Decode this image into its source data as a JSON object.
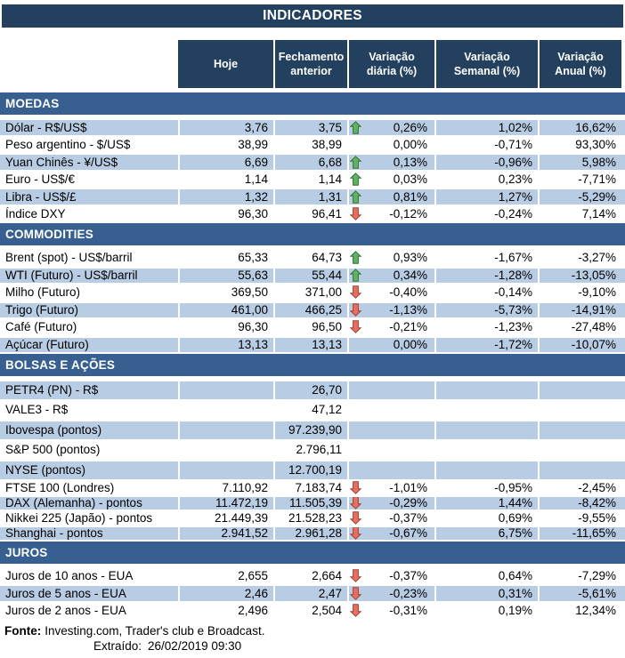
{
  "title": "INDICADORES",
  "columns": [
    "Hoje",
    "Fechamento anterior",
    "Variação diária (%)",
    "Variação Semanal (%)",
    "Variação Anual (%)"
  ],
  "colors": {
    "title_header_bg": "#24405f",
    "section_bar_bg": "#376091",
    "row_shade": "#b8cce4",
    "arrow_up_fill": "#5fb25f",
    "arrow_up_border": "#35703a",
    "arrow_down_fill": "#e4705f",
    "arrow_down_border": "#a43e35",
    "header_text": "#ffffff",
    "body_text": "#000000"
  },
  "sections": [
    {
      "id": "moedas",
      "name": "MOEDAS",
      "rows": [
        {
          "label": "Dólar - R$/US$",
          "hoje": "3,76",
          "fech": "3,75",
          "arrow": "up",
          "vd": "0,26%",
          "vs": "1,02%",
          "va": "16,62%",
          "shaded": true,
          "size": "normal"
        },
        {
          "label": "Peso argentino - $/US$",
          "hoje": "38,99",
          "fech": "38,99",
          "arrow": "",
          "vd": "0,00%",
          "vs": "-0,71%",
          "va": "93,30%",
          "shaded": false,
          "size": "normal"
        },
        {
          "label": "Yuan Chinês - ¥/US$",
          "hoje": "6,69",
          "fech": "6,68",
          "arrow": "up",
          "vd": "0,13%",
          "vs": "-0,96%",
          "va": "5,98%",
          "shaded": true,
          "size": "normal"
        },
        {
          "label": "Euro - US$/€",
          "hoje": "1,14",
          "fech": "1,14",
          "arrow": "up",
          "vd": "0,03%",
          "vs": "0,23%",
          "va": "-7,71%",
          "shaded": false,
          "size": "normal"
        },
        {
          "label": "Libra - US$/£",
          "hoje": "1,32",
          "fech": "1,31",
          "arrow": "up",
          "vd": "0,81%",
          "vs": "1,27%",
          "va": "-5,29%",
          "shaded": true,
          "size": "normal"
        },
        {
          "label": "Índice DXY",
          "hoje": "96,30",
          "fech": "96,41",
          "arrow": "down",
          "vd": "-0,12%",
          "vs": "-0,24%",
          "va": "7,14%",
          "shaded": false,
          "size": "normal"
        }
      ]
    },
    {
      "id": "commodities",
      "name": "COMMODITIES",
      "rows": [
        {
          "label": "Brent (spot) - US$/barril",
          "hoje": "65,33",
          "fech": "64,73",
          "arrow": "up",
          "vd": "0,93%",
          "vs": "-1,67%",
          "va": "-3,27%",
          "shaded": false,
          "size": "normal"
        },
        {
          "label": "WTI (Futuro) - US$/barril",
          "hoje": "55,63",
          "fech": "55,44",
          "arrow": "up",
          "vd": "0,34%",
          "vs": "-1,28%",
          "va": "-13,05%",
          "shaded": true,
          "size": "normal"
        },
        {
          "label": "Milho (Futuro)",
          "hoje": "369,50",
          "fech": "371,00",
          "arrow": "down",
          "vd": "-0,40%",
          "vs": "-0,14%",
          "va": "-9,10%",
          "shaded": false,
          "size": "normal"
        },
        {
          "label": "Trigo (Futuro)",
          "hoje": "461,00",
          "fech": "466,25",
          "arrow": "down",
          "vd": "-1,13%",
          "vs": "-5,73%",
          "va": "-14,91%",
          "shaded": true,
          "size": "normal"
        },
        {
          "label": "Café (Futuro)",
          "hoje": "96,30",
          "fech": "96,50",
          "arrow": "down",
          "vd": "-0,21%",
          "vs": "-1,23%",
          "va": "-27,48%",
          "shaded": false,
          "size": "normal"
        },
        {
          "label": "Açúcar (Futuro)",
          "hoje": "13,13",
          "fech": "13,13",
          "arrow": "",
          "vd": "0,00%",
          "vs": "-1,72%",
          "va": "-10,07%",
          "shaded": true,
          "size": "normal"
        }
      ]
    },
    {
      "id": "bolsas-e-acoes",
      "name": "BOLSAS E AÇÕES",
      "rows": [
        {
          "label": "PETR4 (PN) - R$",
          "hoje": "",
          "fech": "26,70",
          "arrow": "",
          "vd": "",
          "vs": "",
          "va": "",
          "shaded": true,
          "size": "tall"
        },
        {
          "label": "VALE3 - R$",
          "hoje": "",
          "fech": "47,12",
          "arrow": "",
          "vd": "",
          "vs": "",
          "va": "",
          "shaded": false,
          "size": "tall"
        },
        {
          "label": "Ibovespa (pontos)",
          "hoje": "",
          "fech": "97.239,90",
          "arrow": "",
          "vd": "",
          "vs": "",
          "va": "",
          "shaded": true,
          "size": "tall"
        },
        {
          "label": "S&P 500 (pontos)",
          "hoje": "",
          "fech": "2.796,11",
          "arrow": "",
          "vd": "",
          "vs": "",
          "va": "",
          "shaded": false,
          "size": "tall"
        },
        {
          "label": "NYSE (pontos)",
          "hoje": "",
          "fech": "12.700,19",
          "arrow": "",
          "vd": "",
          "vs": "",
          "va": "",
          "shaded": true,
          "size": "tall"
        },
        {
          "label": "FTSE 100 (Londres)",
          "hoje": "7.110,92",
          "fech": "7.183,74",
          "arrow": "down",
          "vd": "-1,01%",
          "vs": "-0,95%",
          "va": "-2,45%",
          "shaded": false,
          "size": "short"
        },
        {
          "label": "DAX (Alemanha) - pontos",
          "hoje": "11.472,19",
          "fech": "11.505,39",
          "arrow": "down",
          "vd": "-0,29%",
          "vs": "1,44%",
          "va": "-8,42%",
          "shaded": true,
          "size": "short"
        },
        {
          "label": "Nikkei 225 (Japão) - pontos",
          "hoje": "21.449,39",
          "fech": "21.528,23",
          "arrow": "down",
          "vd": "-0,37%",
          "vs": "0,69%",
          "va": "-9,55%",
          "shaded": false,
          "size": "short"
        },
        {
          "label": "Shanghai - pontos",
          "hoje": "2.941,52",
          "fech": "2.961,28",
          "arrow": "down",
          "vd": "-0,67%",
          "vs": "6,75%",
          "va": "-11,65%",
          "shaded": true,
          "size": "short"
        }
      ]
    },
    {
      "id": "juros",
      "name": "JUROS",
      "rows": [
        {
          "label": "Juros de 10 anos - EUA",
          "hoje": "2,655",
          "fech": "2,664",
          "arrow": "down",
          "vd": "-0,37%",
          "vs": "0,64%",
          "va": "-7,29%",
          "shaded": false,
          "size": "normal"
        },
        {
          "label": "Juros de 5 anos - EUA",
          "hoje": "2,46",
          "fech": "2,47",
          "arrow": "down",
          "vd": "-0,23%",
          "vs": "0,31%",
          "va": "-5,61%",
          "shaded": true,
          "size": "normal"
        },
        {
          "label": "Juros de 2 anos - EUA",
          "hoje": "2,496",
          "fech": "2,504",
          "arrow": "down",
          "vd": "-0,31%",
          "vs": "0,19%",
          "va": "12,34%",
          "shaded": false,
          "size": "normal"
        }
      ]
    }
  ],
  "footer": {
    "fonte_label": "Fonte:",
    "fonte_text": "Investing.com, Trader's club e Broadcast.",
    "extraido_label": "Extraído:",
    "extraido_value": "26/02/2019 09:30"
  }
}
